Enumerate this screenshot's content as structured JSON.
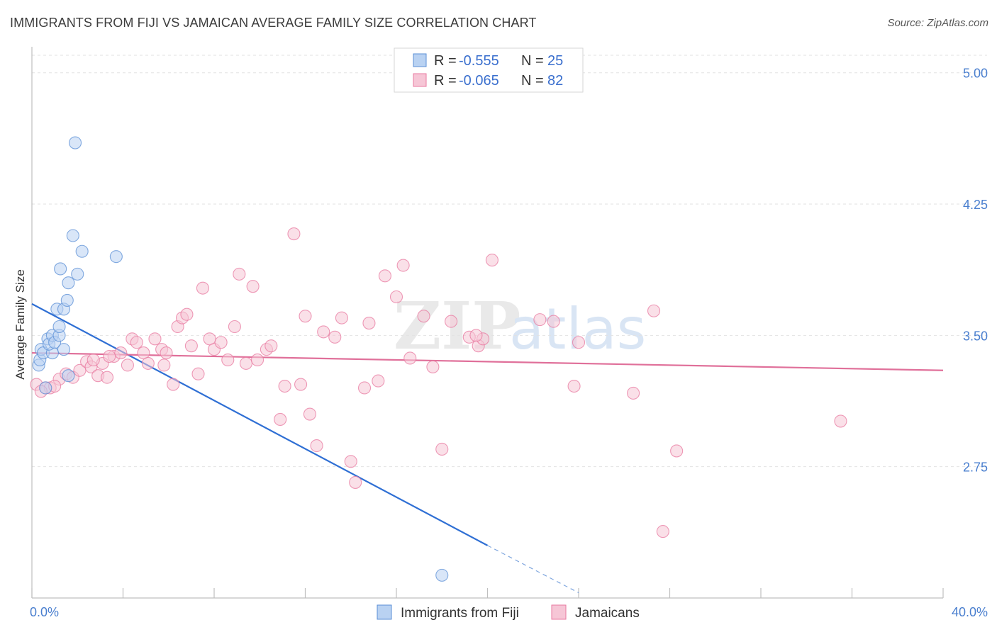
{
  "title": "IMMIGRANTS FROM FIJI VS JAMAICAN AVERAGE FAMILY SIZE CORRELATION CHART",
  "source": "Source: ZipAtlas.com",
  "watermark": {
    "zip": "ZIP",
    "atlas": "atlas"
  },
  "colors": {
    "fiji": "#5b8fd6",
    "fiji_fill": "#b9d2f2",
    "jamaica": "#e87aa0",
    "jamaica_fill": "#f6c6d6",
    "tick": "#4a7fcf"
  },
  "legend": {
    "rows": [
      {
        "series": "fiji",
        "r_label": "R =",
        "r_value": "-0.555",
        "n_label": "N =",
        "n_value": "25"
      },
      {
        "series": "jamaica",
        "r_label": "R =",
        "r_value": "-0.065",
        "n_label": "N =",
        "n_value": "82"
      }
    ]
  },
  "chart_data": {
    "type": "scatter",
    "ylabel": "Average Family Size",
    "xlabel": "",
    "xlim": [
      0,
      40
    ],
    "ylim": [
      2.0,
      5.1
    ],
    "x_tick_labels": [
      {
        "value": 0,
        "label": "0.0%"
      },
      {
        "value": 40,
        "label": "40.0%"
      }
    ],
    "y_ticks": [
      {
        "value": 5.0,
        "label": "5.00"
      },
      {
        "value": 4.25,
        "label": "4.25"
      },
      {
        "value": 3.5,
        "label": "3.50"
      },
      {
        "value": 2.75,
        "label": "2.75"
      }
    ],
    "grid": "horizontal dashed",
    "legend_position": "top-center",
    "series": [
      {
        "name": "Immigrants from Fiji",
        "key": "fiji",
        "points": [
          [
            0.3,
            3.33
          ],
          [
            0.35,
            3.36
          ],
          [
            0.4,
            3.42
          ],
          [
            0.5,
            3.4
          ],
          [
            0.7,
            3.48
          ],
          [
            0.9,
            3.4
          ],
          [
            0.75,
            3.45
          ],
          [
            0.9,
            3.5
          ],
          [
            1.0,
            3.46
          ],
          [
            1.2,
            3.5
          ],
          [
            1.1,
            3.65
          ],
          [
            1.4,
            3.65
          ],
          [
            1.55,
            3.7
          ],
          [
            1.6,
            3.8
          ],
          [
            2.0,
            3.85
          ],
          [
            1.25,
            3.88
          ],
          [
            2.2,
            3.98
          ],
          [
            1.8,
            4.07
          ],
          [
            3.7,
            3.95
          ],
          [
            1.9,
            4.6
          ],
          [
            1.6,
            3.27
          ],
          [
            1.2,
            3.55
          ],
          [
            0.6,
            3.2
          ],
          [
            1.4,
            3.42
          ],
          [
            18.0,
            2.13
          ]
        ],
        "trend": {
          "x0": 0.0,
          "y0": 3.68,
          "x1": 20.0,
          "y1": 2.3,
          "dashed_to_x": 24.0,
          "dashed_to_y": 2.03
        }
      },
      {
        "name": "Jamaicans",
        "key": "jamaica",
        "points": [
          [
            0.2,
            3.22
          ],
          [
            0.6,
            3.2
          ],
          [
            0.8,
            3.2
          ],
          [
            1.2,
            3.25
          ],
          [
            1.5,
            3.28
          ],
          [
            1.8,
            3.26
          ],
          [
            2.1,
            3.3
          ],
          [
            2.4,
            3.35
          ],
          [
            2.6,
            3.32
          ],
          [
            2.9,
            3.27
          ],
          [
            3.1,
            3.34
          ],
          [
            3.3,
            3.26
          ],
          [
            3.6,
            3.38
          ],
          [
            3.9,
            3.4
          ],
          [
            4.2,
            3.33
          ],
          [
            4.4,
            3.48
          ],
          [
            4.6,
            3.46
          ],
          [
            4.9,
            3.4
          ],
          [
            5.1,
            3.34
          ],
          [
            5.4,
            3.48
          ],
          [
            5.7,
            3.42
          ],
          [
            5.9,
            3.4
          ],
          [
            6.2,
            3.22
          ],
          [
            6.4,
            3.55
          ],
          [
            6.6,
            3.6
          ],
          [
            6.8,
            3.62
          ],
          [
            7.0,
            3.44
          ],
          [
            7.3,
            3.28
          ],
          [
            7.5,
            3.77
          ],
          [
            7.8,
            3.48
          ],
          [
            8.0,
            3.42
          ],
          [
            8.3,
            3.46
          ],
          [
            8.6,
            3.36
          ],
          [
            8.9,
            3.55
          ],
          [
            9.1,
            3.85
          ],
          [
            9.4,
            3.34
          ],
          [
            9.7,
            3.78
          ],
          [
            9.9,
            3.36
          ],
          [
            10.3,
            3.42
          ],
          [
            10.5,
            3.44
          ],
          [
            10.9,
            3.02
          ],
          [
            11.1,
            3.21
          ],
          [
            11.5,
            4.08
          ],
          [
            11.8,
            3.22
          ],
          [
            12.0,
            3.61
          ],
          [
            12.2,
            3.05
          ],
          [
            12.5,
            2.87
          ],
          [
            12.8,
            3.52
          ],
          [
            13.3,
            3.49
          ],
          [
            13.6,
            3.6
          ],
          [
            14.0,
            2.78
          ],
          [
            14.2,
            2.66
          ],
          [
            14.6,
            3.2
          ],
          [
            14.8,
            3.57
          ],
          [
            15.2,
            3.24
          ],
          [
            15.5,
            3.84
          ],
          [
            16.0,
            3.72
          ],
          [
            16.3,
            3.9
          ],
          [
            16.6,
            3.37
          ],
          [
            17.2,
            3.61
          ],
          [
            17.6,
            3.32
          ],
          [
            18.0,
            2.85
          ],
          [
            18.4,
            3.58
          ],
          [
            19.2,
            3.49
          ],
          [
            19.6,
            3.44
          ],
          [
            19.8,
            3.48
          ],
          [
            20.2,
            3.93
          ],
          [
            22.3,
            3.59
          ],
          [
            22.9,
            3.58
          ],
          [
            23.8,
            3.21
          ],
          [
            24.0,
            3.46
          ],
          [
            26.4,
            3.17
          ],
          [
            27.3,
            3.64
          ],
          [
            27.7,
            2.38
          ],
          [
            28.3,
            2.84
          ],
          [
            35.5,
            3.01
          ],
          [
            0.4,
            3.18
          ],
          [
            1.0,
            3.21
          ],
          [
            2.7,
            3.36
          ],
          [
            3.4,
            3.38
          ],
          [
            5.8,
            3.33
          ],
          [
            19.5,
            3.5
          ]
        ],
        "trend": {
          "x0": 0.0,
          "y0": 3.4,
          "x1": 40.0,
          "y1": 3.3
        }
      }
    ]
  },
  "bottom_legend": [
    {
      "series": "fiji",
      "label": "Immigrants from Fiji"
    },
    {
      "series": "jamaica",
      "label": "Jamaicans"
    }
  ]
}
